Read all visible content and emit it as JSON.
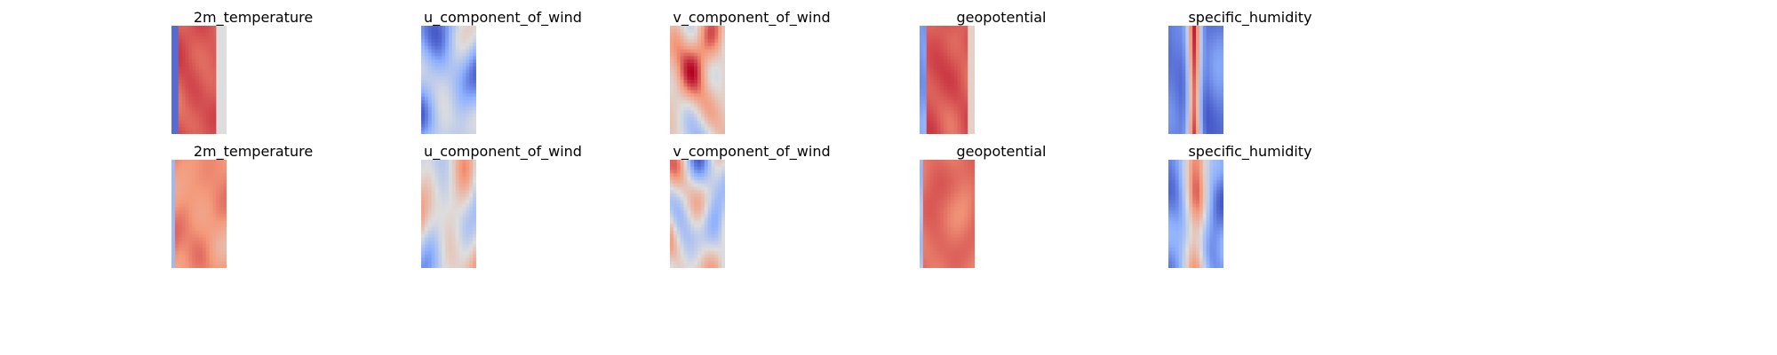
{
  "figure": {
    "background": "#ffffff",
    "colormap": "coolwarm",
    "colormap_colors": [
      "#3b4cc0",
      "#8db0fe",
      "#dddddd",
      "#f49a7b",
      "#b40426"
    ],
    "axes_visible": false
  },
  "chart_data": {
    "type": "heatmap",
    "layout": "2 rows x 5 columns of heatmap panels",
    "colormap": "coolwarm",
    "panels": [
      {
        "row": 1,
        "title": "2m_temperature",
        "pattern": "warm band (red) filling most of the strip, cold (blue) strip on left edge, grey on right edge"
      },
      {
        "row": 1,
        "title": "u_component_of_wind",
        "pattern": "mostly light blue with scattered red and blue streaks"
      },
      {
        "row": 1,
        "title": "v_component_of_wind",
        "pattern": "light orange/grey with scattered red and blue swirls"
      },
      {
        "row": 1,
        "title": "geopotential",
        "pattern": "red centre band, blue left edge, light grey right edge"
      },
      {
        "row": 1,
        "title": "specific_humidity",
        "pattern": "narrow dark red central streak, blue towards both edges"
      },
      {
        "row": 2,
        "title": "2m_temperature",
        "pattern": "mostly light red with darker red patches, slight blue at left edge"
      },
      {
        "row": 2,
        "title": "u_component_of_wind",
        "pattern": "grey background with small red and blue eddies"
      },
      {
        "row": 2,
        "title": "v_component_of_wind",
        "pattern": "grey background with red and blue eddies"
      },
      {
        "row": 2,
        "title": "geopotential",
        "pattern": "red with darker red centre, blue spots at left edge"
      },
      {
        "row": 2,
        "title": "specific_humidity",
        "pattern": "mixed blue and red, reds concentrated in centre"
      }
    ]
  }
}
